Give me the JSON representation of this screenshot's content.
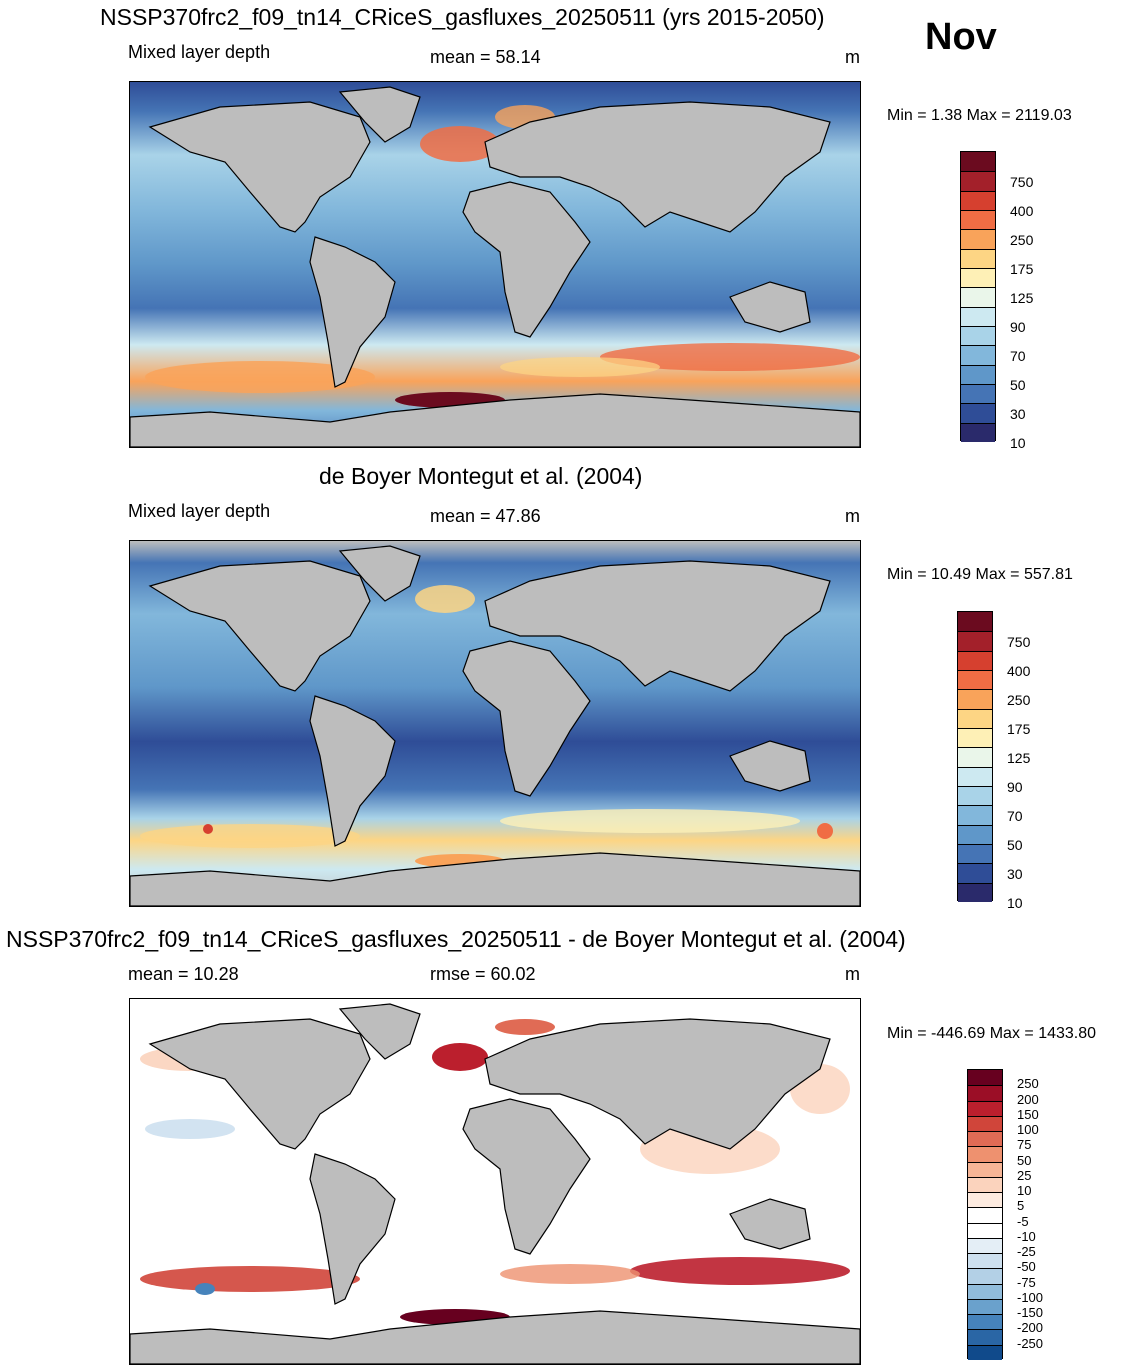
{
  "month": "Nov",
  "panels": [
    {
      "title": "NSSP370frc2_f09_tn14_CRiceS_gasfluxes_20250511 (yrs 2015-2050)",
      "left_label": "Mixed layer depth",
      "center_label": "mean =  58.14",
      "units": "m",
      "minmax": "Min =   1.38 Max = 2119.03",
      "colorbar_labels": [
        "750",
        "400",
        "250",
        "175",
        "125",
        "90",
        "70",
        "50",
        "30",
        "10"
      ],
      "colorbar_colors": [
        "#6b0b1f",
        "#a3202a",
        "#d6402f",
        "#f06d44",
        "#f9a35a",
        "#fdd584",
        "#fef0b6",
        "#eaf6ea",
        "#cde9f1",
        "#a9d3e8",
        "#82b7db",
        "#5f97c9",
        "#4574b5",
        "#2f4d97",
        "#2a2a6b"
      ],
      "map_style": "model"
    },
    {
      "title": "de Boyer Montegut et al. (2004)",
      "left_label": "Mixed layer depth",
      "center_label": "mean =  47.86",
      "units": "m",
      "minmax": "Min =  10.49 Max = 557.81",
      "colorbar_labels": [
        "750",
        "400",
        "250",
        "175",
        "125",
        "90",
        "70",
        "50",
        "30",
        "10"
      ],
      "colorbar_colors": [
        "#6b0b1f",
        "#a3202a",
        "#d6402f",
        "#f06d44",
        "#f9a35a",
        "#fdd584",
        "#fef0b6",
        "#eaf6ea",
        "#cde9f1",
        "#a9d3e8",
        "#82b7db",
        "#5f97c9",
        "#4574b5",
        "#2f4d97",
        "#2a2a6b"
      ],
      "map_style": "obs"
    },
    {
      "title": "NSSP370frc2_f09_tn14_CRiceS_gasfluxes_20250511 - de Boyer Montegut et al. (2004)",
      "left_label": "mean =  10.28",
      "center_label": "rmse =  60.02",
      "units": "m",
      "minmax": "Min = -446.69 Max = 1433.80",
      "colorbar_labels": [
        "250",
        "200",
        "150",
        "100",
        "75",
        "50",
        "25",
        "10",
        "5",
        "-5",
        "-10",
        "-25",
        "-50",
        "-75",
        "-100",
        "-150",
        "-200",
        "-250"
      ],
      "colorbar_colors": [
        "#67001f",
        "#9b0e26",
        "#bb1f2d",
        "#d0453a",
        "#e06b55",
        "#ee916f",
        "#f6b596",
        "#fbd3bd",
        "#fdebe0",
        "#ffffff",
        "#ffffff",
        "#e4eef6",
        "#cde0ef",
        "#b3d0e6",
        "#91bcdb",
        "#6aa1cc",
        "#4683bb",
        "#2a66a5",
        "#104a8b"
      ],
      "map_style": "diff"
    }
  ]
}
